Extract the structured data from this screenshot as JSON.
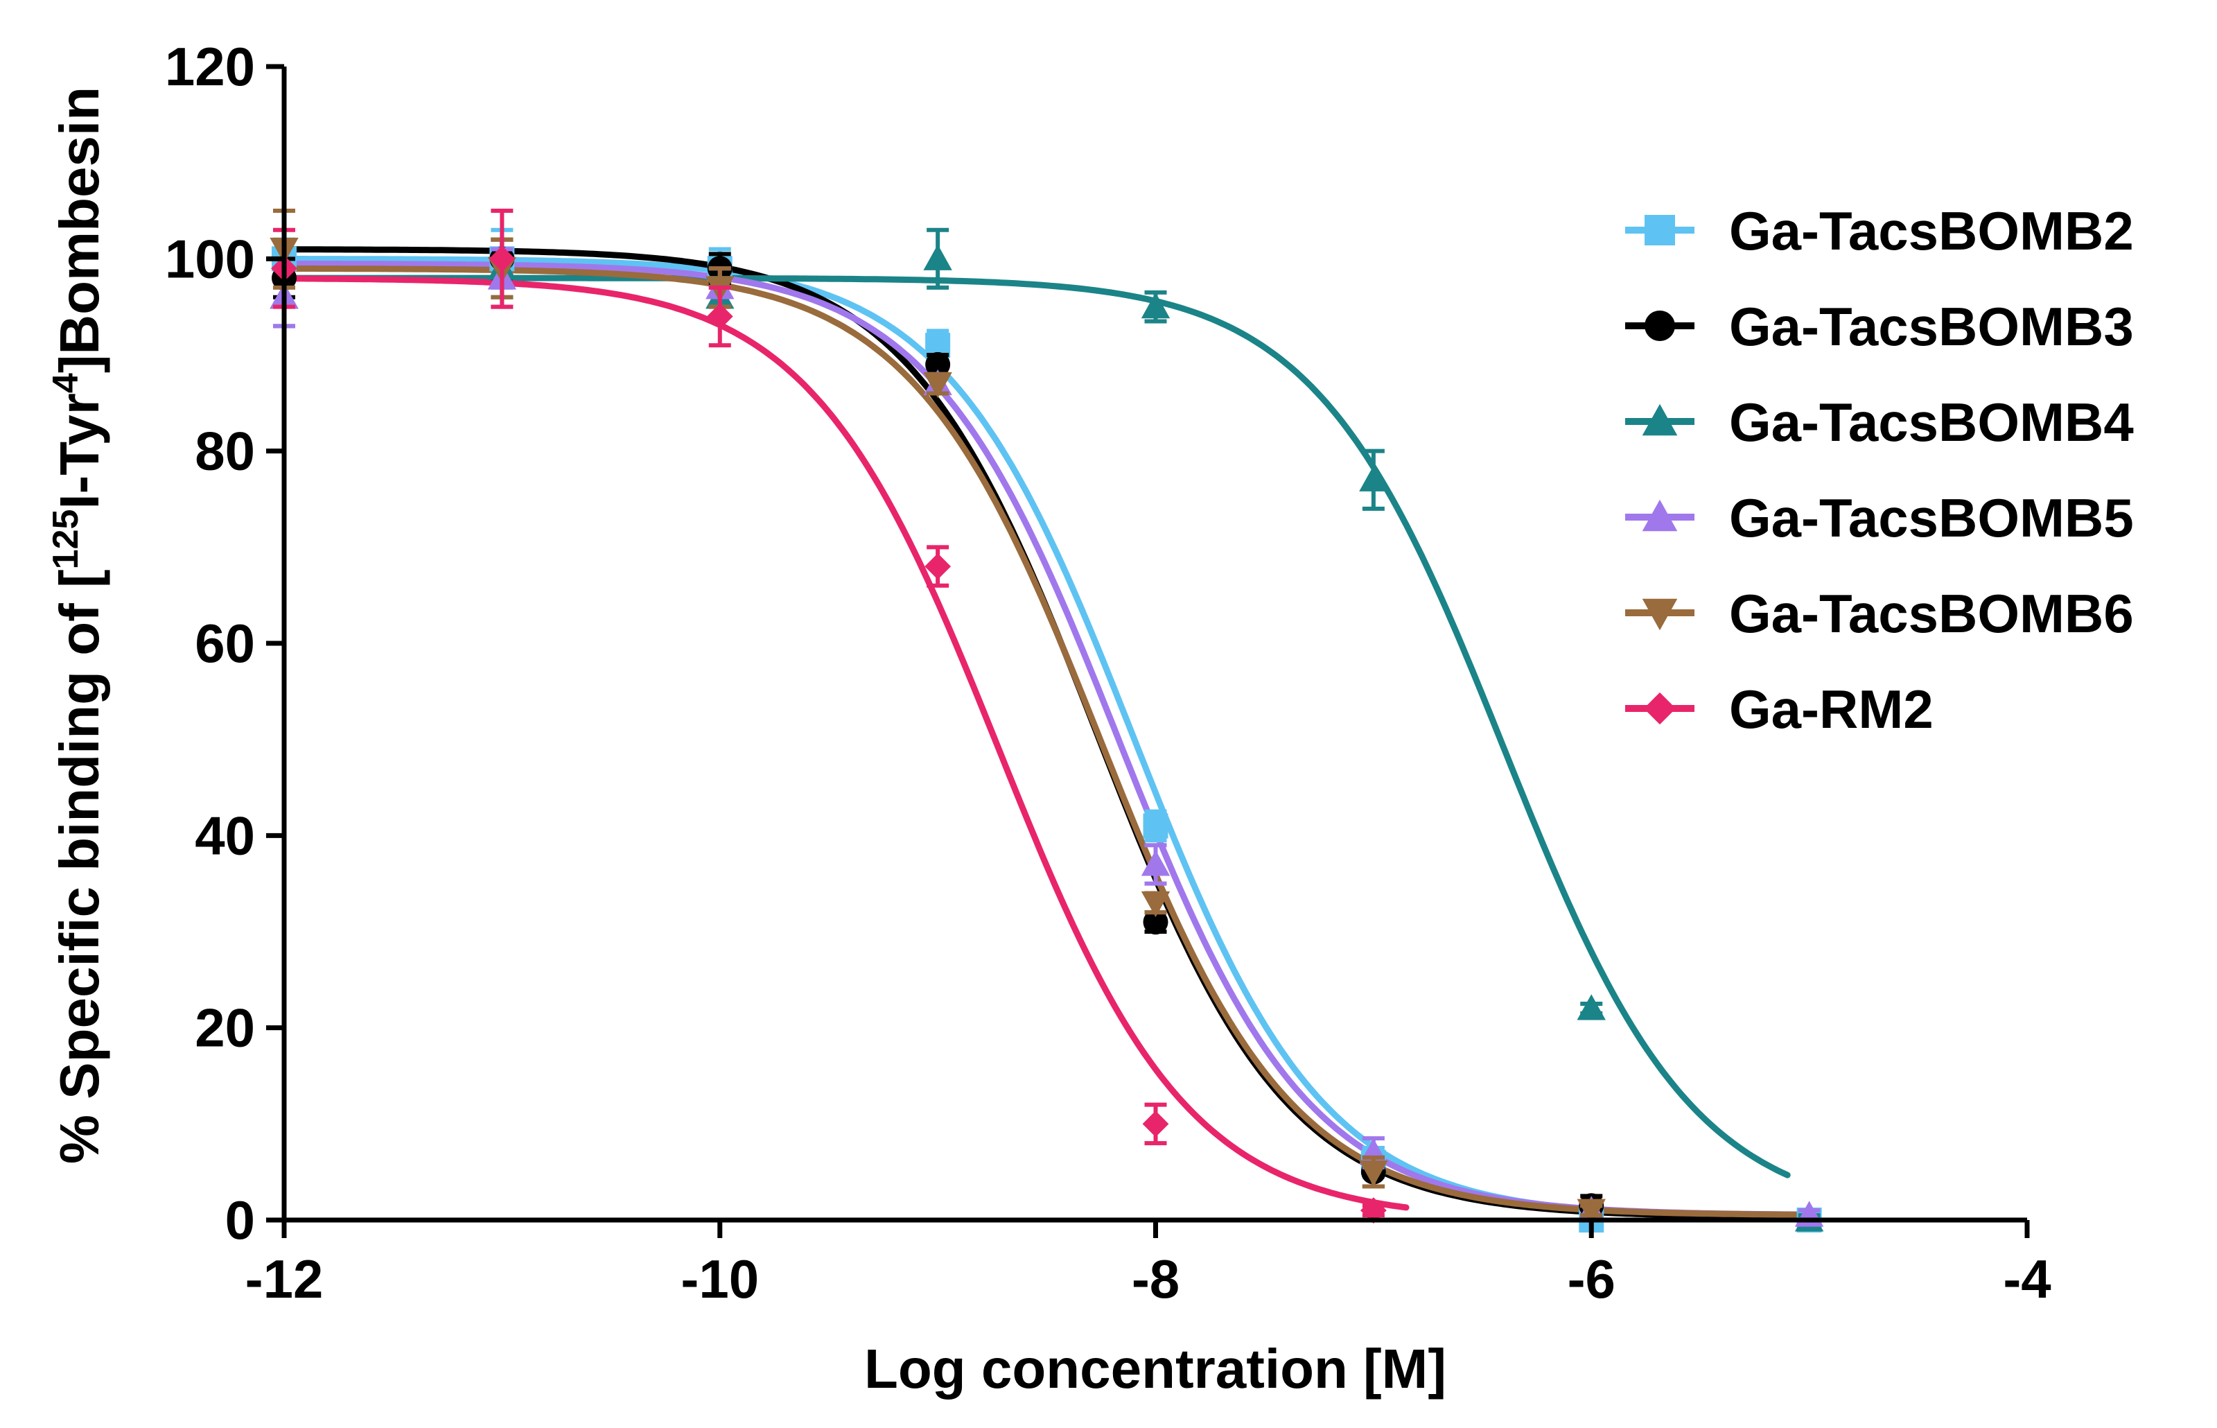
{
  "chart_data": {
    "type": "scatter",
    "title": "",
    "xlabel": "Log concentration [M]",
    "ylabel_parts": {
      "prefix": "% Specific binding of [",
      "sup1": "125",
      "mid": "I-Tyr",
      "sup2": "4",
      "suffix": "]Bombesin"
    },
    "xlim": [
      -12,
      -4
    ],
    "ylim": [
      0,
      120
    ],
    "xticks": [
      -12,
      -10,
      -8,
      -6,
      -4
    ],
    "yticks": [
      0,
      20,
      40,
      60,
      80,
      100,
      120
    ],
    "legend_position": "right",
    "series": [
      {
        "name": "Ga-TacsBOMB2",
        "color": "#5ec3f2",
        "marker": "square",
        "x": [
          -12,
          -11,
          -10,
          -9,
          -8,
          -7,
          -6,
          -5
        ],
        "y": [
          100,
          100,
          99,
          91,
          41,
          6,
          0,
          0
        ],
        "err": [
          2,
          3,
          2,
          1.5,
          1.5,
          1.5,
          0.5,
          0.5
        ],
        "fit": {
          "top": 100,
          "bottom": 0.3,
          "logIC50": -8.1,
          "hill": 1,
          "x_start": -12,
          "x_end": -5
        }
      },
      {
        "name": "Ga-TacsBOMB3",
        "color": "#000000",
        "marker": "circle",
        "x": [
          -12,
          -11,
          -10,
          -9,
          -8,
          -7,
          -6
        ],
        "y": [
          98,
          100,
          99,
          89,
          31,
          5,
          1.5
        ],
        "err": [
          2,
          2,
          1.5,
          1,
          1,
          1.5,
          1
        ],
        "fit": {
          "top": 101,
          "bottom": 0.3,
          "logIC50": -8.27,
          "hill": 1,
          "x_start": -12,
          "x_end": -5
        }
      },
      {
        "name": "Ga-TacsBOMB4",
        "color": "#1b8488",
        "marker": "triangle-up",
        "x": [
          -12,
          -11,
          -10,
          -9,
          -8,
          -7,
          -6,
          -5
        ],
        "y": [
          96,
          99,
          96,
          100,
          95,
          77,
          22,
          0
        ],
        "err": [
          3,
          3,
          2,
          3,
          1.5,
          3,
          0.5,
          0.5
        ],
        "fit": {
          "top": 98,
          "bottom": 0,
          "logIC50": -6.4,
          "hill": 1,
          "x_start": -12,
          "x_end": -5.1
        }
      },
      {
        "name": "Ga-TacsBOMB5",
        "color": "#a078ec",
        "marker": "triangle-up",
        "x": [
          -12,
          -11,
          -10,
          -9,
          -8,
          -7,
          -6,
          -5
        ],
        "y": [
          96,
          98,
          97,
          87,
          37,
          7,
          1,
          0.5
        ],
        "err": [
          3,
          3,
          2,
          1,
          2,
          1.5,
          0.5,
          0.5
        ],
        "fit": {
          "top": 99.5,
          "bottom": 0.5,
          "logIC50": -8.17,
          "hill": 1,
          "x_start": -12,
          "x_end": -5
        }
      },
      {
        "name": "Ga-TacsBOMB6",
        "color": "#9a6b3c",
        "marker": "triangle-down",
        "x": [
          -12,
          -11,
          -10,
          -9,
          -8,
          -7,
          -6
        ],
        "y": [
          101,
          99,
          97,
          87,
          33,
          5,
          1
        ],
        "err": [
          4,
          3,
          2,
          1,
          1,
          1.5,
          0.5
        ],
        "fit": {
          "top": 99,
          "bottom": 0.5,
          "logIC50": -8.25,
          "hill": 1,
          "x_start": -12,
          "x_end": -5
        }
      },
      {
        "name": "Ga-RM2",
        "color": "#e8256a",
        "marker": "diamond",
        "x": [
          -12,
          -11,
          -10,
          -9,
          -8,
          -7
        ],
        "y": [
          99,
          100,
          94,
          68,
          10,
          1
        ],
        "err": [
          4,
          5,
          3,
          2,
          2,
          0.5
        ],
        "fit": {
          "top": 98,
          "bottom": 0,
          "logIC50": -8.72,
          "hill": 1,
          "x_start": -12,
          "x_end": -6.85
        }
      }
    ]
  }
}
